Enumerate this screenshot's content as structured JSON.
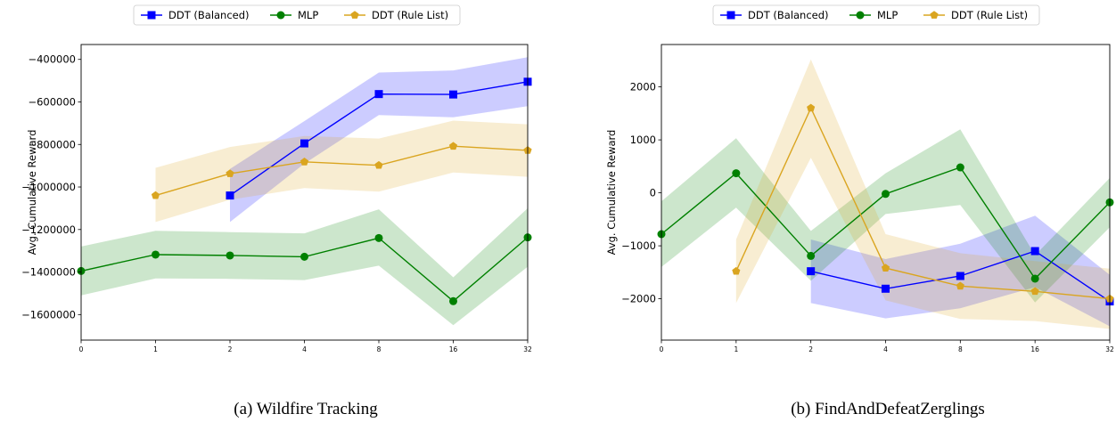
{
  "chart_data": [
    {
      "type": "line",
      "caption": "(a) Wildfire Tracking",
      "xlabel": "",
      "ylabel": "Avg. Cumulative Reward",
      "x_tick_labels": [
        "0",
        "1",
        "2",
        "4",
        "8",
        "16",
        "32"
      ],
      "y_ticks": [
        -400000,
        -600000,
        -800000,
        -1000000,
        -1200000,
        -1400000,
        -1600000
      ],
      "y_tick_labels": [
        "−400000",
        "−600000",
        "−800000",
        "−1000000",
        "−1200000",
        "−1400000",
        "−1600000"
      ],
      "ylim": [
        -1720000,
        -330000
      ],
      "grid": false,
      "legend_position": "top-center",
      "series": [
        {
          "name": "DDT (Balanced)",
          "color": "#0000ff",
          "marker": "square",
          "x_index": [
            2,
            3,
            4,
            5,
            6
          ],
          "values": [
            -1040000,
            -795000,
            -563000,
            -565000,
            -505000
          ],
          "lower": [
            -1165000,
            -890000,
            -662000,
            -672000,
            -620000
          ],
          "upper": [
            -915000,
            -690000,
            -462000,
            -452000,
            -390000
          ]
        },
        {
          "name": "MLP",
          "color": "#008000",
          "marker": "circle",
          "x_index": [
            0,
            1,
            2,
            3,
            4,
            5,
            6
          ],
          "values": [
            -1395000,
            -1318000,
            -1322000,
            -1328000,
            -1240000,
            -1537000,
            -1237000
          ],
          "lower": [
            -1510000,
            -1430000,
            -1432000,
            -1438000,
            -1370000,
            -1650000,
            -1375000
          ],
          "upper": [
            -1280000,
            -1206000,
            -1212000,
            -1218000,
            -1105000,
            -1425000,
            -1100000
          ]
        },
        {
          "name": "DDT (Rule List)",
          "color": "#daa520",
          "marker": "pentagon",
          "x_index": [
            1,
            2,
            3,
            4,
            5,
            6
          ],
          "values": [
            -1040000,
            -937000,
            -882000,
            -898000,
            -808000,
            -828000
          ],
          "lower": [
            -1165000,
            -1060000,
            -1005000,
            -1022000,
            -932000,
            -952000
          ],
          "upper": [
            -910000,
            -812000,
            -760000,
            -772000,
            -688000,
            -705000
          ]
        }
      ]
    },
    {
      "type": "line",
      "caption": "(b) FindAndDefeatZerglings",
      "xlabel": "",
      "ylabel": "Avg. Cumulative Reward",
      "x_tick_labels": [
        "0",
        "1",
        "2",
        "4",
        "8",
        "16",
        "32"
      ],
      "y_ticks": [
        2000,
        1000,
        0,
        -1000,
        -2000
      ],
      "y_tick_labels": [
        "2000",
        "1000",
        "0",
        "−1000",
        "−2000"
      ],
      "ylim": [
        -2780,
        2800
      ],
      "grid": false,
      "legend_position": "top-center",
      "series": [
        {
          "name": "DDT (Balanced)",
          "color": "#0000ff",
          "marker": "square",
          "x_index": [
            2,
            3,
            4,
            5,
            6
          ],
          "values": [
            -1480,
            -1810,
            -1570,
            -1100,
            -2050
          ],
          "lower": [
            -2080,
            -2370,
            -2180,
            -1780,
            -2520
          ],
          "upper": [
            -880,
            -1250,
            -960,
            -430,
            -1550
          ]
        },
        {
          "name": "MLP",
          "color": "#008000",
          "marker": "circle",
          "x_index": [
            0,
            1,
            2,
            3,
            4,
            5,
            6
          ],
          "values": [
            -780,
            370,
            -1190,
            -20,
            480,
            -1620,
            -180
          ],
          "lower": [
            -1400,
            -280,
            -1660,
            -400,
            -230,
            -2070,
            -650
          ],
          "upper": [
            -160,
            1030,
            -720,
            370,
            1200,
            -1180,
            280
          ]
        },
        {
          "name": "DDT (Rule List)",
          "color": "#daa520",
          "marker": "pentagon",
          "x_index": [
            1,
            2,
            3,
            4,
            5,
            6
          ],
          "values": [
            -1480,
            1600,
            -1420,
            -1760,
            -1860,
            -2000
          ],
          "lower": [
            -2080,
            660,
            -2030,
            -2380,
            -2420,
            -2570
          ],
          "upper": [
            -880,
            2520,
            -780,
            -1140,
            -1290,
            -1430
          ]
        }
      ]
    }
  ]
}
